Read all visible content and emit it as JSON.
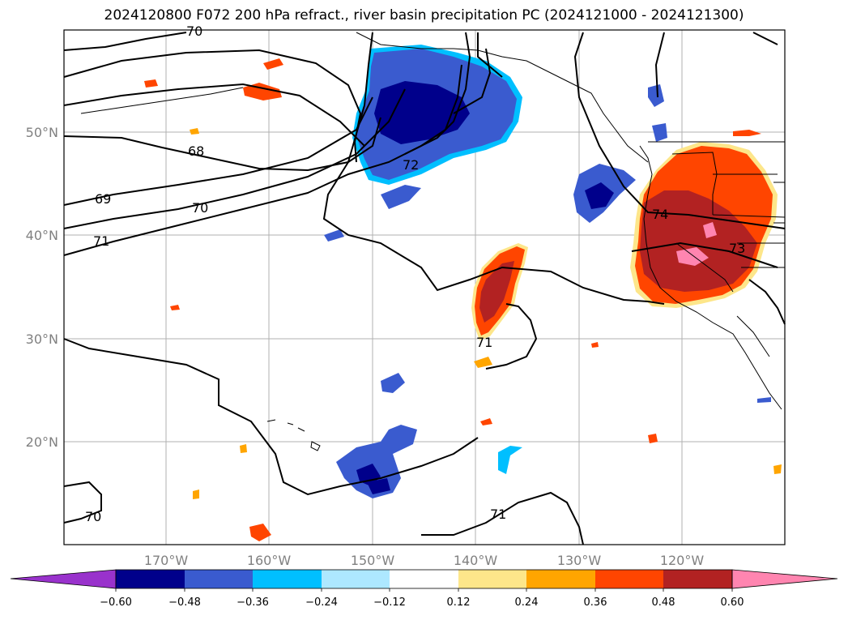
{
  "title": "2024120800 F072 200 hPa refract., river basin precipitation PC (2024121000 - 2024121300)",
  "map": {
    "lat_labels": [
      "50°N",
      "40°N",
      "30°N",
      "20°N"
    ],
    "lon_labels": [
      "170°W",
      "160°W",
      "150°W",
      "140°W",
      "130°W",
      "120°W"
    ],
    "contour_labels": [
      "70",
      "68",
      "72",
      "69",
      "70",
      "71",
      "74",
      "73",
      "71",
      "70",
      "71"
    ],
    "contour_color": "#000000",
    "grid_color": "#b0b0b0"
  },
  "colorbar": {
    "ticks": [
      "−0.60",
      "−0.48",
      "−0.36",
      "−0.24",
      "−0.12",
      "0.12",
      "0.24",
      "0.36",
      "0.48",
      "0.60"
    ],
    "colors": [
      "#9932cc",
      "#00008b",
      "#3a5bcf",
      "#00bfff",
      "#ade8ff",
      "#ffffff",
      "#fde68a",
      "#ffa500",
      "#ff4500",
      "#b22222",
      "#ff85b0"
    ]
  }
}
